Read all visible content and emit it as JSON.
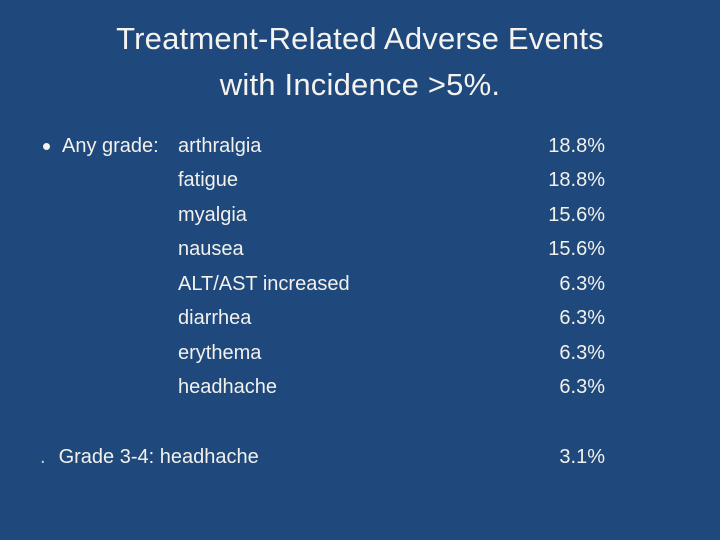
{
  "colors": {
    "background": "#1F497D",
    "text": "#F2F1EC",
    "title_text": "#F4F3EF",
    "muted_dot": "#C7CFDC"
  },
  "title": {
    "line1": "Treatment-Related Adverse Events",
    "line2": "with Incidence >5%."
  },
  "any_grade": {
    "label": "Any grade:",
    "events": [
      {
        "name": "arthralgia",
        "value": "18.8%"
      },
      {
        "name": "fatigue",
        "value": "18.8%"
      },
      {
        "name": "myalgia",
        "value": "15.6%"
      },
      {
        "name": "nausea",
        "value": "15.6%"
      },
      {
        "name": "ALT/AST increased",
        "value": "6.3%"
      },
      {
        "name": "diarrhea",
        "value": "6.3%"
      },
      {
        "name": "erythema",
        "value": "6.3%"
      },
      {
        "name": "headhache",
        "value": "6.3%"
      }
    ]
  },
  "grade_3_4": {
    "bullet": ".",
    "label": "Grade 3-4: headhache",
    "value": "3.1%"
  }
}
